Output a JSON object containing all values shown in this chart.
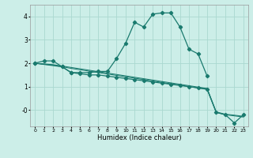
{
  "xlabel": "Humidex (Indice chaleur)",
  "background_color": "#cceee8",
  "line_color": "#1a7a6e",
  "grid_color": "#aad8d0",
  "xlim": [
    -0.5,
    23.5
  ],
  "ylim": [
    -0.7,
    4.5
  ],
  "yticks": [
    0,
    1,
    2,
    3,
    4
  ],
  "ytick_labels": [
    "-0",
    "1",
    "2",
    "3",
    "4"
  ],
  "xticks": [
    0,
    1,
    2,
    3,
    4,
    5,
    6,
    7,
    8,
    9,
    10,
    11,
    12,
    13,
    14,
    15,
    16,
    17,
    18,
    19,
    20,
    21,
    22,
    23
  ],
  "series1_x": [
    0,
    1,
    2,
    3,
    4,
    5,
    6,
    7,
    8,
    9,
    10,
    11,
    12,
    13,
    14,
    15,
    16,
    17,
    18,
    19
  ],
  "series1_y": [
    2.0,
    2.1,
    2.1,
    1.85,
    1.6,
    1.6,
    1.6,
    1.65,
    1.65,
    2.2,
    2.85,
    3.75,
    3.55,
    4.1,
    4.15,
    4.15,
    3.55,
    2.6,
    2.4,
    1.45
  ],
  "series2_x": [
    0,
    3,
    4,
    5,
    6,
    7,
    8,
    9,
    10,
    11,
    12,
    13,
    14,
    15,
    16,
    17,
    18,
    19,
    20,
    21,
    22,
    23
  ],
  "series2_y": [
    2.0,
    1.85,
    1.6,
    1.55,
    1.5,
    1.5,
    1.45,
    1.4,
    1.35,
    1.3,
    1.25,
    1.2,
    1.15,
    1.1,
    1.05,
    1.0,
    0.95,
    0.9,
    -0.1,
    -0.2,
    -0.55,
    -0.2
  ],
  "series3_x": [
    0,
    1,
    2,
    3,
    4,
    5,
    6,
    7,
    8,
    9,
    10,
    11,
    12,
    13,
    14,
    15,
    16,
    17,
    18,
    19,
    20,
    21,
    22,
    23
  ],
  "series3_y": [
    2.0,
    1.96,
    1.92,
    1.85,
    1.78,
    1.72,
    1.66,
    1.6,
    1.54,
    1.48,
    1.42,
    1.36,
    1.3,
    1.24,
    1.18,
    1.12,
    1.06,
    1.0,
    0.94,
    0.88,
    -0.1,
    -0.2,
    -0.25,
    -0.3
  ],
  "series4_x": [
    0,
    1,
    2,
    3,
    4,
    5,
    6,
    7,
    8,
    9,
    10,
    11,
    12,
    13,
    14,
    15,
    16,
    17,
    18,
    19,
    20,
    21,
    22,
    23
  ],
  "series4_y": [
    2.0,
    1.97,
    1.94,
    1.88,
    1.82,
    1.76,
    1.7,
    1.64,
    1.58,
    1.52,
    1.46,
    1.4,
    1.34,
    1.28,
    1.22,
    1.16,
    1.1,
    1.04,
    0.98,
    0.92,
    -0.08,
    -0.18,
    -0.22,
    -0.27
  ]
}
